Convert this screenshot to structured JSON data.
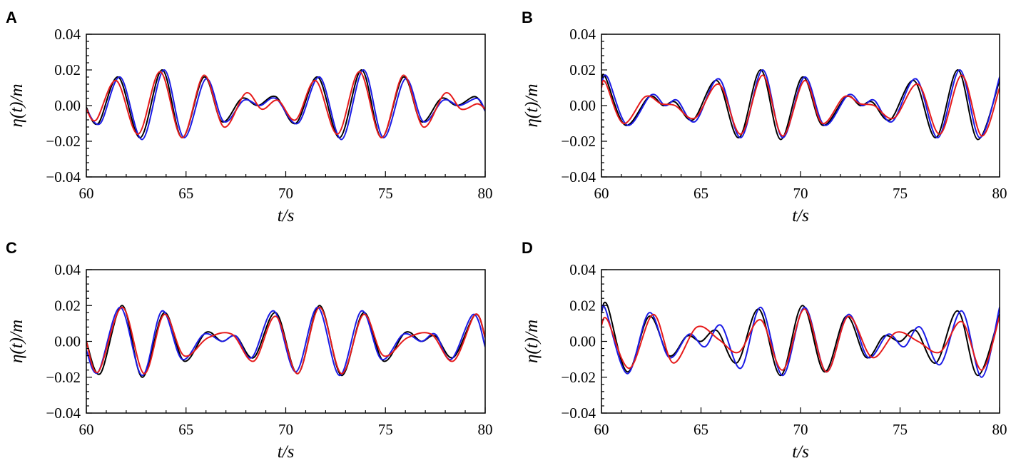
{
  "chart_data": [
    {
      "panel": "A",
      "type": "line",
      "xlabel": "t/s",
      "ylabel": "η(t)/m",
      "xlim": [
        60,
        80
      ],
      "ylim": [
        -0.04,
        0.04
      ],
      "xticks": [
        "60",
        "65",
        "70",
        "75",
        "80"
      ],
      "yticks": [
        "-0.04",
        "-0.02",
        "0.00",
        "0.02",
        "0.04"
      ],
      "series": [
        {
          "name": "black",
          "color": "#000000",
          "x": [
            60.0,
            60.6,
            61.6,
            62.7,
            63.8,
            64.8,
            65.9,
            66.8,
            67.8,
            68.6,
            69.5,
            70.5,
            71.6,
            72.7,
            73.8,
            74.8,
            75.9,
            76.8,
            77.8,
            78.6,
            79.5,
            80.0
          ],
          "y": [
            -0.001,
            -0.01,
            0.016,
            -0.018,
            0.02,
            -0.018,
            0.016,
            -0.009,
            0.004,
            0.0,
            0.005,
            -0.01,
            0.016,
            -0.018,
            0.02,
            -0.018,
            0.016,
            -0.009,
            0.004,
            0.0,
            0.005,
            -0.003
          ]
        },
        {
          "name": "blue",
          "color": "#1a1ae6",
          "x": [
            60.0,
            60.7,
            61.7,
            62.8,
            63.9,
            64.9,
            66.0,
            66.9,
            67.9,
            68.7,
            69.5,
            70.6,
            71.7,
            72.8,
            73.9,
            74.9,
            76.0,
            76.9,
            77.9,
            78.7,
            79.6,
            80.0
          ],
          "y": [
            -0.002,
            -0.01,
            0.016,
            -0.019,
            0.02,
            -0.018,
            0.015,
            -0.009,
            0.003,
            0.0,
            0.004,
            -0.01,
            0.016,
            -0.019,
            0.02,
            -0.018,
            0.015,
            -0.009,
            0.003,
            0.0,
            0.004,
            -0.003
          ]
        },
        {
          "name": "red",
          "color": "#e61a1a",
          "x": [
            60.0,
            60.5,
            61.5,
            62.6,
            63.7,
            64.8,
            65.9,
            66.9,
            68.0,
            68.8,
            69.6,
            70.5,
            71.5,
            72.6,
            73.7,
            74.8,
            75.9,
            76.9,
            78.0,
            78.8,
            79.6,
            80.0
          ],
          "y": [
            -0.002,
            -0.008,
            0.014,
            -0.016,
            0.019,
            -0.018,
            0.017,
            -0.012,
            0.007,
            -0.002,
            0.003,
            -0.008,
            0.014,
            -0.016,
            0.019,
            -0.018,
            0.017,
            -0.012,
            0.007,
            -0.002,
            0.001,
            -0.002
          ]
        }
      ]
    },
    {
      "panel": "B",
      "type": "line",
      "xlabel": "t/s",
      "ylabel": "η(t)/m",
      "xlim": [
        60,
        80
      ],
      "ylim": [
        -0.04,
        0.04
      ],
      "xticks": [
        "60",
        "65",
        "70",
        "75",
        "80"
      ],
      "yticks": [
        "-0.04",
        "-0.02",
        "0.00",
        "0.02",
        "0.04"
      ],
      "series": [
        {
          "name": "black",
          "color": "#000000",
          "x": [
            60.0,
            60.2,
            61.2,
            62.4,
            63.1,
            63.7,
            64.6,
            65.8,
            66.9,
            68.0,
            69.0,
            70.1,
            71.1,
            72.3,
            73.0,
            73.6,
            74.5,
            75.7,
            76.8,
            77.9,
            78.9,
            80.0
          ],
          "y": [
            0.014,
            0.016,
            -0.011,
            0.005,
            0.0,
            0.002,
            -0.008,
            0.014,
            -0.018,
            0.02,
            -0.019,
            0.016,
            -0.011,
            0.005,
            0.0,
            0.002,
            -0.008,
            0.014,
            -0.018,
            0.02,
            -0.019,
            0.014
          ]
        },
        {
          "name": "blue",
          "color": "#1a1ae6",
          "x": [
            60.0,
            60.3,
            61.3,
            62.5,
            63.2,
            63.8,
            64.7,
            65.9,
            67.0,
            68.1,
            69.1,
            70.2,
            71.2,
            72.4,
            73.1,
            73.7,
            74.6,
            75.8,
            76.9,
            78.0,
            79.0,
            80.0
          ],
          "y": [
            0.012,
            0.016,
            -0.011,
            0.006,
            0.0,
            0.003,
            -0.009,
            0.015,
            -0.018,
            0.02,
            -0.018,
            0.016,
            -0.011,
            0.006,
            0.0,
            0.003,
            -0.009,
            0.015,
            -0.018,
            0.02,
            -0.018,
            0.016
          ]
        },
        {
          "name": "red",
          "color": "#e61a1a",
          "x": [
            60.0,
            60.2,
            61.1,
            62.2,
            63.0,
            63.7,
            64.7,
            65.9,
            67.0,
            68.1,
            69.1,
            70.2,
            71.1,
            72.2,
            73.0,
            73.7,
            74.7,
            75.9,
            77.0,
            78.1,
            79.1,
            80.0
          ],
          "y": [
            0.01,
            0.013,
            -0.01,
            0.005,
            0.001,
            0.0,
            -0.007,
            0.012,
            -0.016,
            0.017,
            -0.017,
            0.014,
            -0.01,
            0.005,
            0.001,
            0.0,
            -0.007,
            0.012,
            -0.016,
            0.017,
            -0.017,
            0.01
          ]
        }
      ]
    },
    {
      "panel": "C",
      "type": "line",
      "xlabel": "t/s",
      "ylabel": "η(t)/m",
      "xlim": [
        60,
        80
      ],
      "ylim": [
        -0.04,
        0.04
      ],
      "xticks": [
        "60",
        "65",
        "70",
        "75",
        "80"
      ],
      "yticks": [
        "-0.04",
        "-0.02",
        "0.00",
        "0.02",
        "0.04"
      ],
      "series": [
        {
          "name": "black",
          "color": "#000000",
          "x": [
            60.0,
            60.7,
            61.8,
            62.8,
            63.9,
            64.9,
            66.0,
            66.8,
            67.5,
            68.4,
            69.5,
            70.6,
            71.7,
            72.8,
            73.9,
            74.9,
            76.0,
            76.8,
            77.5,
            78.4,
            79.5,
            80.0
          ],
          "y": [
            0.0,
            -0.018,
            0.02,
            -0.02,
            0.016,
            -0.011,
            0.005,
            0.0,
            0.003,
            -0.009,
            0.016,
            -0.018,
            0.02,
            -0.019,
            0.016,
            -0.011,
            0.005,
            0.0,
            0.003,
            -0.009,
            0.015,
            0.002
          ]
        },
        {
          "name": "blue",
          "color": "#1a1ae6",
          "x": [
            60.0,
            60.6,
            61.7,
            62.8,
            63.8,
            64.8,
            65.9,
            66.8,
            67.5,
            68.3,
            69.4,
            70.5,
            71.6,
            72.7,
            73.8,
            74.8,
            75.9,
            76.8,
            77.5,
            78.3,
            79.4,
            80.0
          ],
          "y": [
            -0.005,
            -0.017,
            0.019,
            -0.019,
            0.017,
            -0.01,
            0.004,
            0.0,
            0.003,
            -0.009,
            0.017,
            -0.017,
            0.019,
            -0.019,
            0.017,
            -0.01,
            0.004,
            0.0,
            0.004,
            -0.01,
            0.015,
            -0.003
          ]
        },
        {
          "name": "red",
          "color": "#e61a1a",
          "x": [
            60.0,
            60.6,
            61.8,
            62.9,
            63.9,
            64.9,
            66.1,
            67.3,
            68.4,
            69.5,
            70.6,
            71.7,
            72.8,
            73.9,
            74.9,
            76.1,
            77.3,
            78.4,
            79.5,
            80.0
          ],
          "y": [
            0.0,
            -0.017,
            0.019,
            -0.018,
            0.015,
            -0.008,
            0.002,
            0.004,
            -0.011,
            0.014,
            -0.018,
            0.019,
            -0.018,
            0.015,
            -0.008,
            0.002,
            0.004,
            -0.011,
            0.015,
            0.002
          ]
        }
      ]
    },
    {
      "panel": "D",
      "type": "line",
      "xlabel": "t/s",
      "ylabel": "η(t)/m",
      "xlim": [
        60,
        80
      ],
      "ylim": [
        -0.04,
        0.04
      ],
      "xticks": [
        "60",
        "65",
        "70",
        "75",
        "80"
      ],
      "yticks": [
        "-0.04",
        "-0.02",
        "0.00",
        "0.02",
        "0.04"
      ],
      "series": [
        {
          "name": "black",
          "color": "#000000",
          "x": [
            60.0,
            60.3,
            61.3,
            62.4,
            63.4,
            64.3,
            65.0,
            65.8,
            66.8,
            67.9,
            69.0,
            70.1,
            71.2,
            72.3,
            73.3,
            74.2,
            75.0,
            75.8,
            76.8,
            77.9,
            78.9,
            80.0
          ],
          "y": [
            0.016,
            0.02,
            -0.017,
            0.014,
            -0.008,
            0.003,
            0.0,
            0.006,
            -0.012,
            0.018,
            -0.019,
            0.02,
            -0.017,
            0.014,
            -0.009,
            0.003,
            0.0,
            0.006,
            -0.012,
            0.017,
            -0.019,
            0.015
          ]
        },
        {
          "name": "blue",
          "color": "#1a1ae6",
          "x": [
            60.0,
            60.2,
            61.3,
            62.4,
            63.4,
            64.4,
            65.2,
            66.0,
            67.0,
            68.0,
            69.1,
            70.2,
            71.3,
            72.4,
            73.4,
            74.4,
            75.2,
            76.0,
            77.0,
            78.1,
            79.1,
            80.0
          ],
          "y": [
            0.016,
            0.018,
            -0.018,
            0.016,
            -0.009,
            0.004,
            -0.003,
            0.009,
            -0.015,
            0.019,
            -0.019,
            0.019,
            -0.017,
            0.015,
            -0.009,
            0.004,
            -0.003,
            0.008,
            -0.013,
            0.017,
            -0.02,
            0.019
          ]
        },
        {
          "name": "red",
          "color": "#e61a1a",
          "x": [
            60.0,
            60.3,
            61.4,
            62.6,
            63.6,
            64.8,
            65.9,
            66.9,
            68.0,
            69.1,
            70.2,
            71.3,
            72.4,
            73.6,
            74.8,
            75.9,
            77.0,
            78.1,
            79.1,
            80.0
          ],
          "y": [
            0.009,
            0.012,
            -0.015,
            0.015,
            -0.012,
            0.008,
            0.001,
            -0.006,
            0.012,
            -0.016,
            0.018,
            -0.017,
            0.014,
            -0.009,
            0.005,
            0.0,
            -0.006,
            0.011,
            -0.016,
            0.014
          ]
        }
      ]
    }
  ]
}
